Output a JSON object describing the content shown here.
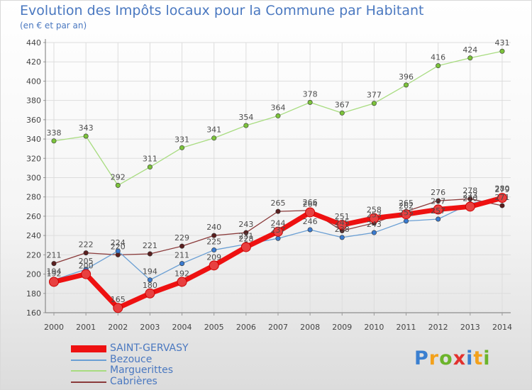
{
  "header": {
    "title": "Evolution des Impôts locaux pour la Commune par Habitant",
    "subtitle": "(en € et par an)"
  },
  "logo": {
    "letters": [
      "P",
      "r",
      "o",
      "x",
      "i",
      "t",
      "i"
    ],
    "colors": [
      "#3a7fd0",
      "#f3a11c",
      "#6cb42b",
      "#e2312e",
      "#3a7fd0",
      "#f3a11c",
      "#6cb42b"
    ]
  },
  "chart_data": {
    "type": "line",
    "title": "Evolution des Impôts locaux pour la Commune par Habitant",
    "subtitle": "(en € et par an)",
    "categories": [
      "2000",
      "2001",
      "2002",
      "2003",
      "2004",
      "2005",
      "2006",
      "2007",
      "2008",
      "2009",
      "2010",
      "2011",
      "2012",
      "2013",
      "2014"
    ],
    "ylim": [
      160,
      440
    ],
    "yticks": [
      160,
      180,
      200,
      220,
      240,
      260,
      280,
      300,
      320,
      340,
      360,
      380,
      400,
      420,
      440
    ],
    "grid": true,
    "legend_position": "bottom-left",
    "series": [
      {
        "name": "SAINT-GERVASY",
        "color": "#ee1111",
        "marker": "#e84040",
        "values": [
          192,
          200,
          165,
          180,
          192,
          209,
          228,
          244,
          264,
          251,
          258,
          262,
          267,
          270,
          279
        ],
        "labels": [
          "192",
          "200",
          "165",
          "180",
          "192",
          "209",
          "228",
          "244",
          "264",
          "251",
          "258",
          "262",
          "267",
          "270",
          "279"
        ]
      },
      {
        "name": "Bezouce",
        "color": "#6a9fd4",
        "marker": "#3a7bd0",
        "values": [
          194,
          205,
          224,
          194,
          211,
          225,
          231,
          237,
          246,
          238,
          243,
          255,
          257,
          273,
          280
        ],
        "labels": [
          "194",
          "205",
          "224",
          "194",
          "211",
          "225",
          "231",
          "237",
          "246",
          "238",
          "243",
          "255",
          "257",
          "273",
          "280"
        ]
      },
      {
        "name": "Marguerittes",
        "color": "#a8dc80",
        "marker": "#7cc33b",
        "values": [
          338,
          343,
          292,
          311,
          331,
          341,
          354,
          364,
          378,
          367,
          377,
          396,
          416,
          424,
          431
        ],
        "labels": [
          "338",
          "343",
          "292",
          "311",
          "331",
          "341",
          "354",
          "364",
          "378",
          "367",
          "377",
          "396",
          "416",
          "424",
          "431"
        ]
      },
      {
        "name": "Cabrières",
        "color": "#8a3a3a",
        "marker": "#5a1f1f",
        "values": [
          211,
          222,
          220,
          221,
          229,
          240,
          243,
          265,
          266,
          245,
          253,
          265,
          276,
          278,
          271
        ],
        "labels": [
          "211",
          "222",
          "220",
          "221",
          "229",
          "240",
          "243",
          "265",
          "266",
          "245",
          "253",
          "265",
          "276",
          "278",
          "271"
        ]
      }
    ]
  }
}
